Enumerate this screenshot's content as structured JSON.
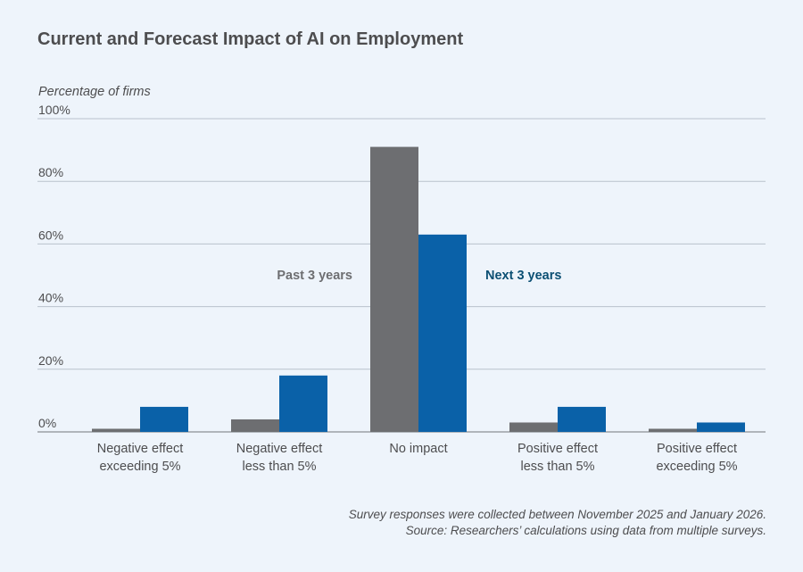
{
  "title": "Current and Forecast Impact of AI on Employment",
  "ylabel_text": "Percentage of firms",
  "notes": {
    "line1": "Survey responses were collected between November 2025 and January 2026.",
    "line2": "Source: Researchers’ calculations using data from multiple surveys."
  },
  "colors": {
    "past": "#6d6e71",
    "next": "#0a61a8",
    "next_label": "#0b4f73",
    "grid": "#b9c2cc",
    "axis": "#8a8f95"
  },
  "chart_data": {
    "type": "bar",
    "title": "Current and Forecast Impact of AI on Employment",
    "ylabel": "Percentage of firms",
    "xlabel": "",
    "ylim": [
      0,
      100
    ],
    "yticks": [
      0,
      20,
      40,
      60,
      80,
      100
    ],
    "ytick_labels": [
      "0%",
      "20%",
      "40%",
      "60%",
      "80%",
      "100%"
    ],
    "grid": true,
    "legend": "inline labels above bars (center)",
    "categories": [
      [
        "Negative effect",
        "exceeding 5%"
      ],
      [
        "Negative effect",
        "less than 5%"
      ],
      [
        "No impact"
      ],
      [
        "Positive effect",
        "less than 5%"
      ],
      [
        "Positive effect",
        "exceeding 5%"
      ]
    ],
    "series": [
      {
        "name": "Past 3 years",
        "values": [
          1,
          4,
          91,
          3,
          1
        ]
      },
      {
        "name": "Next 3 years",
        "values": [
          8,
          18,
          63,
          8,
          3
        ]
      }
    ]
  }
}
